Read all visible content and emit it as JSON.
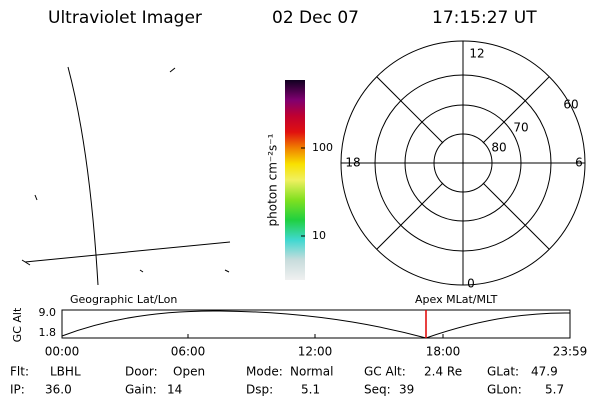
{
  "header": {
    "title": "Ultraviolet Imager",
    "date": "02 Dec 07",
    "time": "17:15:27 UT"
  },
  "colorbar": {
    "label": "photon cm⁻²s⁻¹",
    "ticks": [
      "100",
      "10"
    ]
  },
  "polar": {
    "mlt_labels": [
      "12",
      "18",
      "6",
      "0"
    ],
    "lat_labels": [
      "60",
      "70",
      "80"
    ]
  },
  "altitude_plot": {
    "ylabel": "GC Alt",
    "yticks": [
      "9.0",
      "1.8"
    ],
    "left_label": "Geographic Lat/Lon",
    "right_label": "Apex MLat/MLT",
    "xticks": [
      "00:00",
      "06:00",
      "12:00",
      "18:00",
      "23:59"
    ]
  },
  "info": {
    "rows": [
      [
        [
          "Flt:",
          "LBHL"
        ],
        [
          "Door:",
          "Open"
        ],
        [
          "Mode:",
          "Normal"
        ],
        [
          "GC Alt:",
          "2.4 Re"
        ],
        [
          "GLat:",
          "47.9"
        ]
      ],
      [
        [
          "IP:",
          "36.0"
        ],
        [
          "Gain:",
          "14"
        ],
        [
          "Dsp:",
          "5.1"
        ],
        [
          "Seq:",
          "39"
        ],
        [
          "GLon:",
          "5.7"
        ]
      ]
    ]
  }
}
